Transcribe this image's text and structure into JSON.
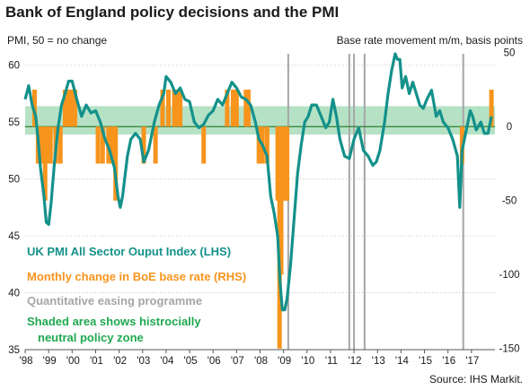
{
  "header": {
    "title": "Bank of England policy decisions and the PMI",
    "left_axis_label": "PMI, 50 = no change",
    "right_axis_label": "Base rate movement  m/m, basis points"
  },
  "footer": {
    "source": "Source: IHS Markit."
  },
  "colors": {
    "pmi": "#13918a",
    "base_rate": "#f7941d",
    "qe": "#a6a6a6",
    "neutral_zone": "#8ed3a6",
    "zero_line": "#2e7d32",
    "legend_shaded": "#1fa84f"
  },
  "legend": [
    {
      "text": "UK PMI All Sector Ouput Index (LHS)",
      "color": "#13918a"
    },
    {
      "text": "Monthly change in BoE base rate (RHS)",
      "color": "#f7941d"
    },
    {
      "text": "Quantitative easing programme",
      "color": "#a6a6a6"
    },
    {
      "text": "Shaded area shows histrocially",
      "color": "#1fa84f"
    },
    {
      "text": "neutral policy zone",
      "color": "#1fa84f"
    }
  ],
  "chart_data": {
    "type": "line",
    "x_start": 1998.0,
    "x_end": 2018.0,
    "x_ticks": [
      "'98",
      "'99",
      "'00",
      "'01",
      "'02",
      "'03",
      "'04",
      "'05",
      "'06",
      "'07",
      "'08",
      "'09",
      "'10",
      "'11",
      "'12",
      "'13",
      "'14",
      "'15",
      "'16",
      "'17"
    ],
    "y_left": {
      "range": [
        35,
        61
      ],
      "ticks": [
        35,
        40,
        45,
        50,
        55,
        60
      ]
    },
    "y_right": {
      "range": [
        -150,
        50
      ],
      "ticks": [
        -150,
        -100,
        -50,
        0,
        50
      ]
    },
    "neutral_zone_pmi": [
      53.9,
      56.4
    ],
    "zero_line_pmi": 54.6,
    "series": [
      {
        "name": "UK PMI All Sector Ouput Index (LHS)",
        "axis": "left",
        "points": [
          [
            1998.0,
            57.0
          ],
          [
            1998.15,
            58.2
          ],
          [
            1998.3,
            56.5
          ],
          [
            1998.45,
            55.5
          ],
          [
            1998.55,
            53.5
          ],
          [
            1998.65,
            51.0
          ],
          [
            1998.8,
            48.5
          ],
          [
            1998.9,
            46.2
          ],
          [
            1999.0,
            46.0
          ],
          [
            1999.1,
            47.8
          ],
          [
            1999.25,
            51.5
          ],
          [
            1999.4,
            54.5
          ],
          [
            1999.55,
            56.5
          ],
          [
            1999.7,
            57.5
          ],
          [
            1999.85,
            58.6
          ],
          [
            2000.0,
            58.6
          ],
          [
            2000.2,
            57.0
          ],
          [
            2000.4,
            55.5
          ],
          [
            2000.6,
            56.5
          ],
          [
            2000.8,
            55.8
          ],
          [
            2001.0,
            56.0
          ],
          [
            2001.2,
            55.0
          ],
          [
            2001.4,
            53.5
          ],
          [
            2001.6,
            52.5
          ],
          [
            2001.8,
            51.0
          ],
          [
            2001.95,
            48.5
          ],
          [
            2002.05,
            47.5
          ],
          [
            2002.15,
            48.5
          ],
          [
            2002.35,
            52.0
          ],
          [
            2002.5,
            53.5
          ],
          [
            2002.7,
            54.0
          ],
          [
            2002.9,
            53.5
          ],
          [
            2003.05,
            51.5
          ],
          [
            2003.25,
            52.5
          ],
          [
            2003.5,
            55.0
          ],
          [
            2003.7,
            56.5
          ],
          [
            2003.9,
            57.5
          ],
          [
            2004.0,
            59.0
          ],
          [
            2004.2,
            58.5
          ],
          [
            2004.4,
            57.5
          ],
          [
            2004.6,
            58.0
          ],
          [
            2004.8,
            57.0
          ],
          [
            2005.0,
            56.8
          ],
          [
            2005.2,
            55.0
          ],
          [
            2005.4,
            54.5
          ],
          [
            2005.6,
            54.8
          ],
          [
            2005.8,
            55.6
          ],
          [
            2006.0,
            56.0
          ],
          [
            2006.2,
            57.0
          ],
          [
            2006.4,
            56.5
          ],
          [
            2006.6,
            57.5
          ],
          [
            2006.8,
            58.5
          ],
          [
            2007.0,
            58.0
          ],
          [
            2007.2,
            57.2
          ],
          [
            2007.4,
            57.0
          ],
          [
            2007.6,
            56.5
          ],
          [
            2007.8,
            55.0
          ],
          [
            2007.95,
            53.5
          ],
          [
            2008.1,
            53.0
          ],
          [
            2008.3,
            52.0
          ],
          [
            2008.45,
            48.5
          ],
          [
            2008.6,
            47.0
          ],
          [
            2008.75,
            45.0
          ],
          [
            2008.85,
            41.0
          ],
          [
            2008.95,
            38.5
          ],
          [
            2009.05,
            38.5
          ],
          [
            2009.15,
            39.5
          ],
          [
            2009.3,
            42.5
          ],
          [
            2009.45,
            46.5
          ],
          [
            2009.6,
            50.5
          ],
          [
            2009.75,
            53.0
          ],
          [
            2009.9,
            55.0
          ],
          [
            2010.05,
            55.5
          ],
          [
            2010.2,
            56.5
          ],
          [
            2010.4,
            56.5
          ],
          [
            2010.6,
            55.5
          ],
          [
            2010.8,
            54.5
          ],
          [
            2010.95,
            55.0
          ],
          [
            2011.1,
            57.0
          ],
          [
            2011.25,
            55.5
          ],
          [
            2011.4,
            53.5
          ],
          [
            2011.6,
            52.0
          ],
          [
            2011.8,
            51.8
          ],
          [
            2012.0,
            53.5
          ],
          [
            2012.2,
            54.5
          ],
          [
            2012.4,
            52.5
          ],
          [
            2012.6,
            52.0
          ],
          [
            2012.8,
            51.2
          ],
          [
            2012.95,
            51.5
          ],
          [
            2013.1,
            52.5
          ],
          [
            2013.3,
            55.0
          ],
          [
            2013.45,
            57.5
          ],
          [
            2013.6,
            59.5
          ],
          [
            2013.75,
            61.0
          ],
          [
            2013.85,
            60.5
          ],
          [
            2013.95,
            60.5
          ],
          [
            2014.05,
            58.0
          ],
          [
            2014.2,
            59.0
          ],
          [
            2014.35,
            57.5
          ],
          [
            2014.5,
            58.5
          ],
          [
            2014.65,
            57.5
          ],
          [
            2014.8,
            56.5
          ],
          [
            2014.95,
            56.2
          ],
          [
            2015.1,
            57.0
          ],
          [
            2015.3,
            57.8
          ],
          [
            2015.5,
            55.5
          ],
          [
            2015.65,
            56.0
          ],
          [
            2015.8,
            55.0
          ],
          [
            2016.0,
            54.5
          ],
          [
            2016.2,
            53.5
          ],
          [
            2016.4,
            52.0
          ],
          [
            2016.5,
            47.5
          ],
          [
            2016.6,
            52.5
          ],
          [
            2016.75,
            54.0
          ],
          [
            2016.95,
            56.0
          ],
          [
            2017.05,
            55.5
          ],
          [
            2017.2,
            54.3
          ],
          [
            2017.4,
            55.0
          ],
          [
            2017.55,
            54.0
          ],
          [
            2017.7,
            54.0
          ],
          [
            2017.85,
            55.5
          ]
        ]
      },
      {
        "name": "Monthly change in BoE base rate (RHS)",
        "axis": "right",
        "bars": [
          [
            1998.4,
            25
          ],
          [
            1998.55,
            -25
          ],
          [
            1998.65,
            -25
          ],
          [
            1998.75,
            -25
          ],
          [
            1998.85,
            -50
          ],
          [
            1999.0,
            -25
          ],
          [
            1999.08,
            -25
          ],
          [
            1999.3,
            -25
          ],
          [
            1999.5,
            -25
          ],
          [
            1999.7,
            25
          ],
          [
            1999.85,
            25
          ],
          [
            2000.0,
            25
          ],
          [
            2000.12,
            25
          ],
          [
            2001.1,
            -25
          ],
          [
            2001.3,
            -25
          ],
          [
            2001.55,
            -25
          ],
          [
            2001.7,
            -25
          ],
          [
            2001.78,
            -25
          ],
          [
            2001.85,
            -50
          ],
          [
            2003.05,
            -25
          ],
          [
            2003.55,
            -25
          ],
          [
            2003.85,
            25
          ],
          [
            2004.1,
            25
          ],
          [
            2004.35,
            25
          ],
          [
            2004.45,
            25
          ],
          [
            2004.6,
            25
          ],
          [
            2005.6,
            -25
          ],
          [
            2006.6,
            25
          ],
          [
            2006.85,
            25
          ],
          [
            2007.0,
            25
          ],
          [
            2007.4,
            25
          ],
          [
            2007.5,
            25
          ],
          [
            2007.95,
            -25
          ],
          [
            2008.1,
            -25
          ],
          [
            2008.3,
            -25
          ],
          [
            2008.75,
            -50
          ],
          [
            2008.83,
            -150
          ],
          [
            2008.9,
            -100
          ],
          [
            2009.0,
            -50
          ],
          [
            2009.08,
            -50
          ],
          [
            2009.15,
            -50
          ],
          [
            2016.6,
            -25
          ],
          [
            2017.85,
            25
          ]
        ]
      }
    ],
    "qe_programmes": [
      2009.2,
      2011.8,
      2012.0,
      2012.45,
      2016.65
    ]
  }
}
